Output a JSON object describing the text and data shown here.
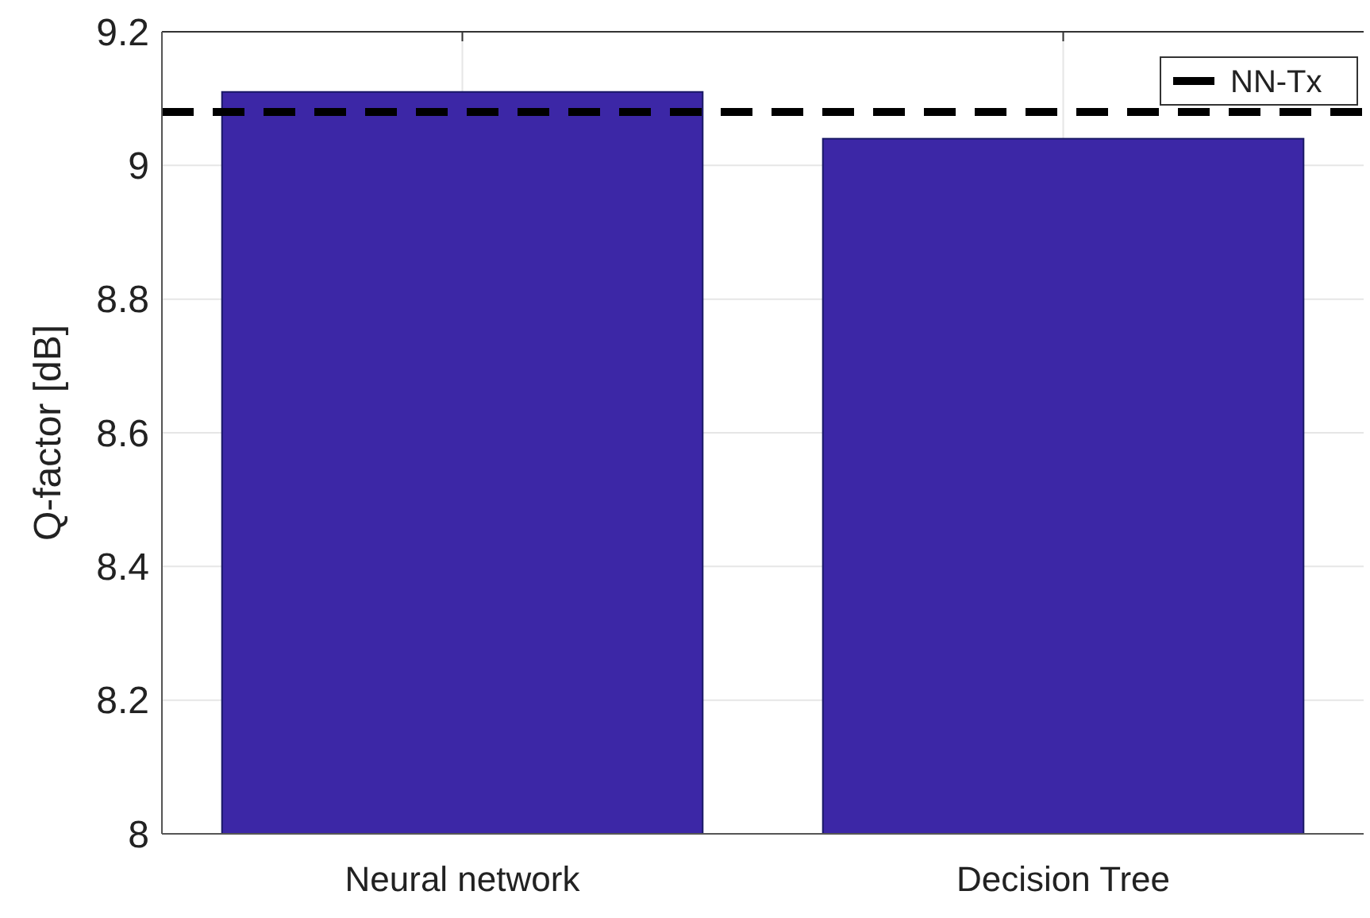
{
  "chart_data": {
    "type": "bar",
    "ylabel": "Q-factor [dB]",
    "categories": [
      "Neural network",
      "Decision Tree"
    ],
    "values": [
      9.11,
      9.04
    ],
    "color": "#3c27a6",
    "ylim": [
      8,
      9.2
    ],
    "yticks": [
      8,
      8.2,
      8.4,
      8.6,
      8.8,
      9,
      9.2
    ],
    "grid": true,
    "legend": "top right",
    "ref_lines": [
      {
        "axis": "y",
        "value": 9.08,
        "label": "NN-Tx",
        "color": "#000000",
        "line_style": "dashed"
      }
    ]
  }
}
